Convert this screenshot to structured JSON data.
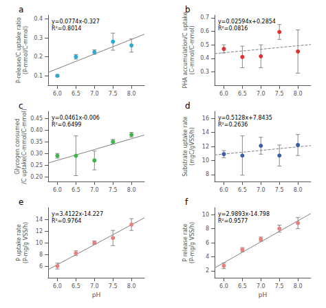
{
  "chart_data": [
    {
      "type": "scatter",
      "title": "a",
      "ylabel": "P-release/C uptake ratio\n(P-mmol/C-mmol)",
      "annotations": [
        "y=0.0774x-0.327\nR²=0.8014"
      ],
      "xlim": [
        5.75,
        8.35
      ],
      "xticks": [
        {
          "value": 6.0,
          "label": "6.0"
        },
        6.5,
        {
          "value": 7.0,
          "label": "7.0"
        },
        7.5,
        {
          "value": 8.0,
          "label": "8.0"
        }
      ],
      "ylim": [
        0.05,
        0.42
      ],
      "yticks": [
        0.1,
        0.2,
        0.3,
        0.4
      ],
      "grid": false,
      "series": [
        {
          "type": "scatter",
          "marker": "circle",
          "color": "#29ABD4",
          "x": [
            6.0,
            6.5,
            7.0,
            7.5,
            8.0
          ],
          "values": [
            0.1,
            0.2,
            0.225,
            0.28,
            0.26
          ],
          "yerr": [
            0.005,
            0.012,
            0.012,
            0.045,
            0.035
          ]
        },
        {
          "type": "line",
          "line_style": "solid",
          "color": "#808080",
          "x": [
            5.75,
            8.35
          ],
          "values": [
            0.11805,
            0.31929
          ]
        }
      ]
    },
    {
      "type": "scatter",
      "title": "b",
      "ylabel": "PHA accumulation/C uptake\n(C-mmol/C-mmol)",
      "annotations": [
        "y=0.02594x+0.2854\nR²=0.0816"
      ],
      "xlim": [
        5.75,
        8.35
      ],
      "xticks": [
        {
          "value": 6.0,
          "label": "6.0"
        },
        6.5,
        {
          "value": 7.0,
          "label": "7.0"
        },
        7.5,
        {
          "value": 8.0,
          "label": "8.0"
        }
      ],
      "ylim": [
        0.2,
        0.72
      ],
      "yticks": [
        0.3,
        0.4,
        0.5,
        0.6,
        0.7
      ],
      "grid": false,
      "series": [
        {
          "type": "scatter",
          "marker": "circle",
          "color": "#E03030",
          "x": [
            6.0,
            6.5,
            7.0,
            7.5,
            8.0
          ],
          "values": [
            0.47,
            0.41,
            0.415,
            0.595,
            0.45
          ],
          "yerr": [
            0.03,
            0.08,
            0.085,
            0.055,
            0.16
          ]
        },
        {
          "type": "line",
          "line_style": "dashed",
          "color": "#808080",
          "x": [
            5.75,
            8.35
          ],
          "values": [
            0.434555,
            0.501999
          ]
        }
      ]
    },
    {
      "type": "scatter",
      "title": "c",
      "ylabel": "Glycogen consumed\n/C uptake(C-mmol/C-mmol)",
      "annotations": [
        "y=0.0461x-0.006\nR²=0.6499"
      ],
      "xlim": [
        5.75,
        8.35
      ],
      "xticks": [
        {
          "value": 6.0,
          "label": "6.0"
        },
        6.5,
        {
          "value": 7.0,
          "label": "7.0"
        },
        7.5,
        {
          "value": 8.0,
          "label": "8.0"
        }
      ],
      "ylim": [
        0.18,
        0.48
      ],
      "yticks": [
        {
          "value": 0.2,
          "label": "0.20"
        },
        0.25,
        {
          "value": 0.3,
          "label": "0.30"
        },
        0.35,
        {
          "value": 0.4,
          "label": "0.40"
        },
        0.45
      ],
      "grid": false,
      "series": [
        {
          "type": "scatter",
          "marker": "circle",
          "color": "#3CB54A",
          "x": [
            6.0,
            6.5,
            7.0,
            7.5,
            8.0
          ],
          "values": [
            0.29,
            0.29,
            0.27,
            0.35,
            0.38
          ],
          "yerr": [
            0.01,
            0.085,
            0.04,
            0.01,
            0.01
          ]
        },
        {
          "type": "line",
          "line_style": "solid",
          "color": "#808080",
          "x": [
            5.75,
            8.35
          ],
          "values": [
            0.259075,
            0.378935
          ]
        }
      ]
    },
    {
      "type": "scatter",
      "title": "d",
      "ylabel": "Substrate uptake rate\n(mgC/gVSS/h)",
      "annotations": [
        "y=0.5128x+7.8435\nR²=0.2636"
      ],
      "xlim": [
        5.75,
        8.35
      ],
      "xticks": [
        {
          "value": 6.0,
          "label": "6.0"
        },
        6.5,
        {
          "value": 7.0,
          "label": "7.0"
        },
        7.5,
        {
          "value": 8.0,
          "label": "8.0"
        }
      ],
      "ylim": [
        7.0,
        17.0
      ],
      "yticks": [
        8,
        10,
        12,
        14,
        16
      ],
      "grid": false,
      "series": [
        {
          "type": "scatter",
          "marker": "circle",
          "color": "#3A5FA8",
          "x": [
            6.0,
            6.5,
            7.0,
            7.5,
            8.0
          ],
          "values": [
            10.9,
            10.7,
            12.1,
            10.7,
            12.2
          ],
          "yerr": [
            0.5,
            2.8,
            1.2,
            1.5,
            1.5
          ]
        },
        {
          "type": "line",
          "line_style": "dashed",
          "color": "#808080",
          "x": [
            5.75,
            8.35
          ],
          "values": [
            10.7921,
            12.12538
          ]
        }
      ]
    },
    {
      "type": "scatter",
      "title": "e",
      "xlabel": "pH",
      "ylabel": "P uptake rate\n(P-mg/g VSS/h)",
      "annotations": [
        "y=3.4122x-14.227\nR²=0.9764"
      ],
      "xlim": [
        5.75,
        8.35
      ],
      "xticks": [
        {
          "value": 6.0,
          "label": "6.0"
        },
        6.5,
        {
          "value": 7.0,
          "label": "7.0"
        },
        7.5,
        {
          "value": 8.0,
          "label": "8.0"
        }
      ],
      "ylim": [
        4.0,
        16.0
      ],
      "yticks": [
        6,
        8,
        10,
        12,
        14
      ],
      "grid": false,
      "series": [
        {
          "type": "scatter",
          "marker": "circle",
          "color": "#E88080",
          "x": [
            6.0,
            6.5,
            7.0,
            7.5,
            8.0
          ],
          "values": [
            6.0,
            8.2,
            10.0,
            10.8,
            13.1
          ],
          "yerr": [
            0.5,
            0.4,
            0.3,
            1.3,
            1.0
          ]
        },
        {
          "type": "line",
          "line_style": "solid",
          "color": "#808080",
          "x": [
            5.75,
            8.35
          ],
          "values": [
            5.39315,
            14.26487
          ]
        }
      ]
    },
    {
      "type": "scatter",
      "title": "f",
      "xlabel": "pH",
      "ylabel": "P release rate\n(P-mg/g VSS/h)",
      "annotations": [
        "y=2.9893x-14.798\nR²=0.9577"
      ],
      "xlim": [
        5.75,
        8.35
      ],
      "xticks": [
        {
          "value": 6.0,
          "label": "6.0"
        },
        6.5,
        {
          "value": 7.0,
          "label": "7.0"
        },
        7.5,
        {
          "value": 8.0,
          "label": "8.0"
        }
      ],
      "ylim": [
        1.0,
        11.0
      ],
      "yticks": [
        2,
        4,
        6,
        8,
        10
      ],
      "grid": false,
      "series": [
        {
          "type": "scatter",
          "marker": "circle",
          "color": "#E88080",
          "x": [
            6.0,
            6.5,
            7.0,
            7.5,
            8.0
          ],
          "values": [
            2.7,
            5.0,
            6.5,
            8.0,
            8.8
          ],
          "yerr": [
            0.4,
            0.3,
            0.3,
            0.5,
            0.8
          ]
        },
        {
          "type": "line",
          "line_style": "solid",
          "color": "#808080",
          "x": [
            5.75,
            8.35
          ],
          "values": [
            2.390475,
            10.162655
          ]
        }
      ]
    }
  ]
}
